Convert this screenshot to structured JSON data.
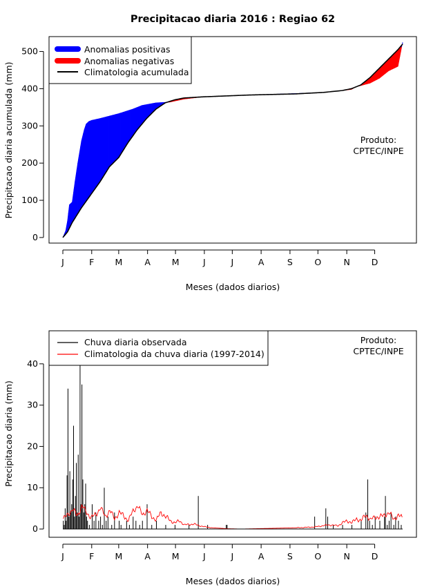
{
  "chart_data": [
    {
      "type": "area",
      "title": "Precipitacao diaria 2016 : Regiao 62",
      "xlabel": "Meses (dados diarios)",
      "ylabel": "Precipitacao diaria acumulada (mm)",
      "ylim": [
        -15,
        540
      ],
      "yticks": [
        0,
        100,
        200,
        300,
        400,
        500
      ],
      "month_ticks": [
        "J",
        "F",
        "M",
        "A",
        "M",
        "J",
        "J",
        "A",
        "S",
        "O",
        "N",
        "D"
      ],
      "legend": {
        "position": "top-left",
        "items": [
          "Anomalias positivas",
          "Anomalias negativas",
          "Climatologia acumulada"
        ]
      },
      "annotation": [
        "Produto:",
        "CPTEC/INPE"
      ],
      "colors": {
        "positive": "#0000ff",
        "negative": "#ff0000",
        "line": "#000000"
      },
      "observed_cumulative": {
        "day": [
          0,
          3,
          5,
          7,
          10,
          13,
          16,
          20,
          23,
          25,
          28,
          31,
          40,
          60,
          75,
          85,
          100,
          115,
          130,
          150,
          200,
          250,
          280,
          300,
          310,
          315,
          330,
          340,
          350,
          360,
          365
        ],
        "value": [
          0,
          18,
          45,
          88,
          95,
          150,
          200,
          260,
          290,
          305,
          312,
          315,
          320,
          333,
          345,
          355,
          362,
          364,
          372,
          378,
          383,
          387,
          390,
          395,
          398,
          405,
          415,
          428,
          448,
          460,
          525
        ]
      },
      "climatology_cumulative": {
        "day": [
          0,
          5,
          10,
          20,
          30,
          40,
          50,
          60,
          70,
          80,
          90,
          100,
          110,
          120,
          130,
          150,
          200,
          250,
          280,
          300,
          310,
          320,
          330,
          340,
          350,
          360,
          365
        ],
        "value": [
          0,
          15,
          40,
          80,
          115,
          150,
          190,
          215,
          255,
          290,
          320,
          345,
          362,
          370,
          375,
          378,
          383,
          386,
          390,
          395,
          400,
          410,
          430,
          455,
          480,
          505,
          520
        ]
      }
    },
    {
      "type": "bar",
      "xlabel": "Meses (dados diarios)",
      "ylabel": "Precipitacao diaria (mm)",
      "ylim": [
        -2,
        48
      ],
      "yticks": [
        0,
        10,
        20,
        30,
        40
      ],
      "month_ticks": [
        "J",
        "F",
        "M",
        "A",
        "M",
        "J",
        "J",
        "A",
        "S",
        "O",
        "N",
        "D"
      ],
      "legend": {
        "position": "top-left",
        "items": [
          "Chuva diaria observada",
          "Climatologia da chuva diaria (1997-2014)"
        ]
      },
      "annotation": [
        "Produto:",
        "CPTEC/INPE"
      ],
      "colors": {
        "observed": "#000000",
        "climatology": "#ff0000"
      },
      "observed_daily_nonzero": [
        [
          0,
          2
        ],
        [
          1,
          1
        ],
        [
          2,
          5
        ],
        [
          3,
          2
        ],
        [
          4,
          13
        ],
        [
          5,
          34
        ],
        [
          6,
          3
        ],
        [
          7,
          14
        ],
        [
          8,
          4
        ],
        [
          9,
          6
        ],
        [
          10,
          12
        ],
        [
          11,
          25
        ],
        [
          12,
          3
        ],
        [
          13,
          8
        ],
        [
          14,
          16
        ],
        [
          15,
          4
        ],
        [
          16,
          18
        ],
        [
          17,
          3
        ],
        [
          18,
          42
        ],
        [
          19,
          6
        ],
        [
          20,
          35
        ],
        [
          21,
          12
        ],
        [
          22,
          4
        ],
        [
          23,
          6
        ],
        [
          24,
          11
        ],
        [
          25,
          3
        ],
        [
          26,
          2
        ],
        [
          28,
          1
        ],
        [
          31,
          6
        ],
        [
          33,
          2
        ],
        [
          35,
          4
        ],
        [
          38,
          2
        ],
        [
          40,
          3
        ],
        [
          42,
          1
        ],
        [
          44,
          10
        ],
        [
          46,
          2
        ],
        [
          48,
          3
        ],
        [
          52,
          1
        ],
        [
          55,
          4
        ],
        [
          60,
          2
        ],
        [
          62,
          1
        ],
        [
          68,
          2
        ],
        [
          71,
          1
        ],
        [
          75,
          3
        ],
        [
          78,
          2
        ],
        [
          82,
          1
        ],
        [
          85,
          2
        ],
        [
          90,
          6
        ],
        [
          95,
          1
        ],
        [
          100,
          2
        ],
        [
          110,
          1
        ],
        [
          120,
          1
        ],
        [
          135,
          1
        ],
        [
          145,
          8
        ],
        [
          155,
          1
        ],
        [
          175,
          1
        ],
        [
          176,
          1
        ],
        [
          270,
          3
        ],
        [
          282,
          5
        ],
        [
          284,
          3
        ],
        [
          290,
          1
        ],
        [
          300,
          1
        ],
        [
          310,
          1
        ],
        [
          320,
          2
        ],
        [
          325,
          4
        ],
        [
          327,
          12
        ],
        [
          329,
          2
        ],
        [
          332,
          1
        ],
        [
          335,
          3
        ],
        [
          340,
          2
        ],
        [
          345,
          3
        ],
        [
          346,
          8
        ],
        [
          348,
          1
        ],
        [
          350,
          2
        ],
        [
          352,
          4
        ],
        [
          355,
          1
        ],
        [
          357,
          3
        ],
        [
          360,
          2
        ],
        [
          363,
          1
        ]
      ],
      "climatology_daily": {
        "day": [
          0,
          5,
          10,
          15,
          20,
          25,
          30,
          35,
          40,
          45,
          50,
          55,
          60,
          65,
          70,
          75,
          80,
          85,
          90,
          95,
          100,
          105,
          110,
          115,
          120,
          125,
          130,
          140,
          150,
          160,
          175,
          190,
          210,
          230,
          250,
          270,
          285,
          295,
          300,
          305,
          310,
          315,
          320,
          325,
          330,
          335,
          340,
          345,
          350,
          355,
          360,
          364
        ],
        "value": [
          2.5,
          3.5,
          4.8,
          3.2,
          5.6,
          4.0,
          2.8,
          3.5,
          5.2,
          3.0,
          4.5,
          2.5,
          4.0,
          3.2,
          2.0,
          4.5,
          5.5,
          3.5,
          4.5,
          3.0,
          2.2,
          4.0,
          3.0,
          2.0,
          1.5,
          2.0,
          1.0,
          1.2,
          0.6,
          0.3,
          0.1,
          0.0,
          0.1,
          0.2,
          0.3,
          0.5,
          1.0,
          0.8,
          1.5,
          2.0,
          1.5,
          2.5,
          2.0,
          3.5,
          2.2,
          3.0,
          2.8,
          3.5,
          3.8,
          2.5,
          3.2,
          2.8
        ]
      }
    }
  ]
}
